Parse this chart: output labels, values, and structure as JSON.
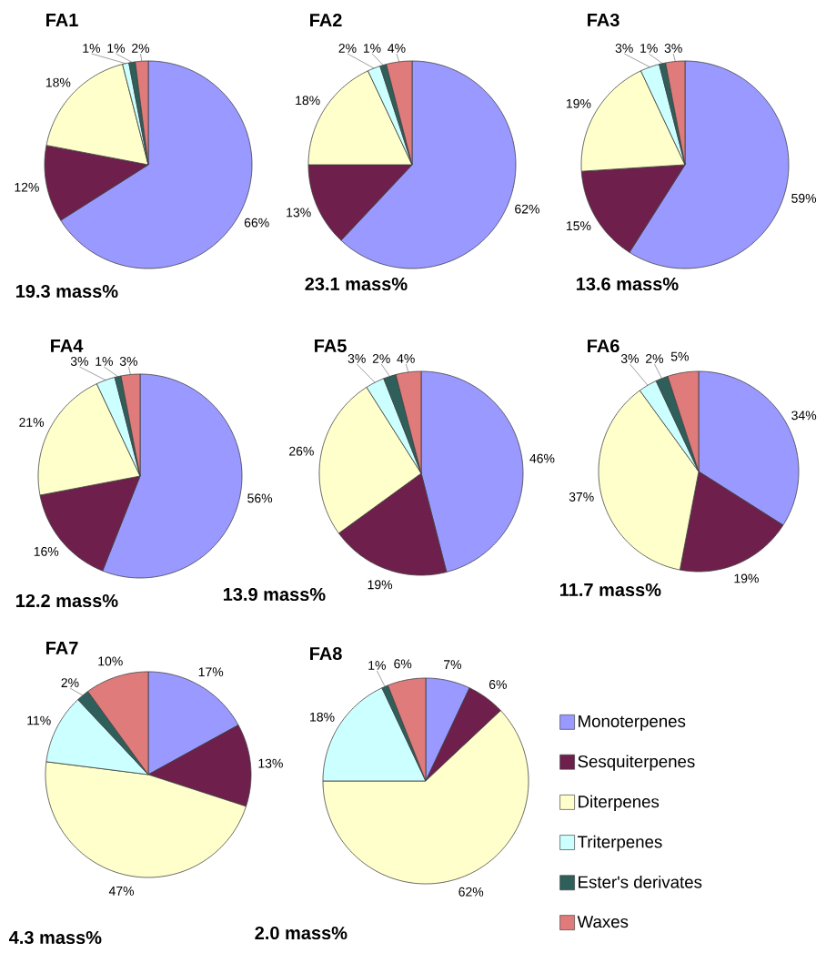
{
  "chart_data": [
    {
      "type": "pie",
      "title": "FA1",
      "categories": [
        null,
        null,
        null,
        null,
        null,
        null
      ],
      "values": [
        66,
        12,
        18,
        1,
        1,
        2
      ],
      "value_labels": [
        "66%",
        "12%",
        "18%",
        "1%",
        "1%",
        "2%"
      ],
      "colors": [
        "#9999ff",
        "#6e1f4b",
        "#ffffcc",
        "#ccffff",
        "#2f5f5a",
        "#e07b7b"
      ],
      "annotations": [
        "19.3 mass%"
      ]
    },
    {
      "type": "pie",
      "title": "FA2",
      "categories": [
        null,
        null,
        null,
        null,
        null,
        null
      ],
      "values": [
        62,
        13,
        18,
        2,
        1,
        4
      ],
      "value_labels": [
        "62%",
        "13%",
        "18%",
        "2%",
        "1%",
        "4%"
      ],
      "colors": [
        "#9999ff",
        "#6e1f4b",
        "#ffffcc",
        "#ccffff",
        "#2f5f5a",
        "#e07b7b"
      ],
      "annotations": [
        "23.1 mass%"
      ]
    },
    {
      "type": "pie",
      "title": "FA3",
      "categories": [
        null,
        null,
        null,
        null,
        null,
        null
      ],
      "values": [
        59,
        15,
        19,
        3,
        1,
        3
      ],
      "value_labels": [
        "59%",
        "15%",
        "19%",
        "3%",
        "1%",
        "3%"
      ],
      "colors": [
        "#9999ff",
        "#6e1f4b",
        "#ffffcc",
        "#ccffff",
        "#2f5f5a",
        "#e07b7b"
      ],
      "annotations": [
        "13.6 mass%"
      ]
    },
    {
      "type": "pie",
      "title": "FA4",
      "categories": [
        null,
        null,
        null,
        null,
        null,
        null
      ],
      "values": [
        56,
        16,
        21,
        3,
        1,
        3
      ],
      "value_labels": [
        "56%",
        "16%",
        "21%",
        "3%",
        "1%",
        "3%"
      ],
      "colors": [
        "#9999ff",
        "#6e1f4b",
        "#ffffcc",
        "#ccffff",
        "#2f5f5a",
        "#e07b7b"
      ],
      "annotations": [
        "12.2 mass%"
      ]
    },
    {
      "type": "pie",
      "title": "FA5",
      "categories": [
        null,
        null,
        null,
        null,
        null,
        null
      ],
      "values": [
        46,
        19,
        26,
        3,
        2,
        4
      ],
      "value_labels": [
        "46%",
        "19%",
        "26%",
        "3%",
        "2%",
        "4%"
      ],
      "colors": [
        "#9999ff",
        "#6e1f4b",
        "#ffffcc",
        "#ccffff",
        "#2f5f5a",
        "#e07b7b"
      ],
      "annotations": [
        "13.9 mass%"
      ]
    },
    {
      "type": "pie",
      "title": "FA6",
      "categories": [
        null,
        null,
        null,
        null,
        null,
        null
      ],
      "values": [
        34,
        19,
        37,
        3,
        2,
        5
      ],
      "value_labels": [
        "34%",
        "19%",
        "37%",
        "3%",
        "2%",
        "5%"
      ],
      "colors": [
        "#9999ff",
        "#6e1f4b",
        "#ffffcc",
        "#ccffff",
        "#2f5f5a",
        "#e07b7b"
      ],
      "annotations": [
        "11.7 mass%"
      ]
    },
    {
      "type": "pie",
      "title": "FA7",
      "categories": [
        null,
        null,
        null,
        null,
        null,
        null
      ],
      "values": [
        17,
        13,
        47,
        11,
        2,
        10
      ],
      "value_labels": [
        "17%",
        "13%",
        "47%",
        "11%",
        "2%",
        "10%"
      ],
      "colors": [
        "#9999ff",
        "#6e1f4b",
        "#ffffcc",
        "#ccffff",
        "#2f5f5a",
        "#e07b7b"
      ],
      "annotations": [
        "4.3 mass%"
      ]
    },
    {
      "type": "pie",
      "title": "FA8",
      "categories": [
        "Monoterpenes",
        "Sesquiterpenes",
        "Diterpenes",
        "Triterpenes",
        "Ester's derivates",
        "Waxes"
      ],
      "values": [
        7,
        6,
        62,
        18,
        1,
        6
      ],
      "value_labels": [
        "7%",
        "6%",
        "62%",
        "18%",
        "1%",
        "6%"
      ],
      "colors": [
        "#9999ff",
        "#6e1f4b",
        "#ffffcc",
        "#ccffff",
        "#2f5f5a",
        "#e07b7b"
      ],
      "annotations": [
        "2.0 mass%"
      ],
      "legend": "right"
    }
  ]
}
